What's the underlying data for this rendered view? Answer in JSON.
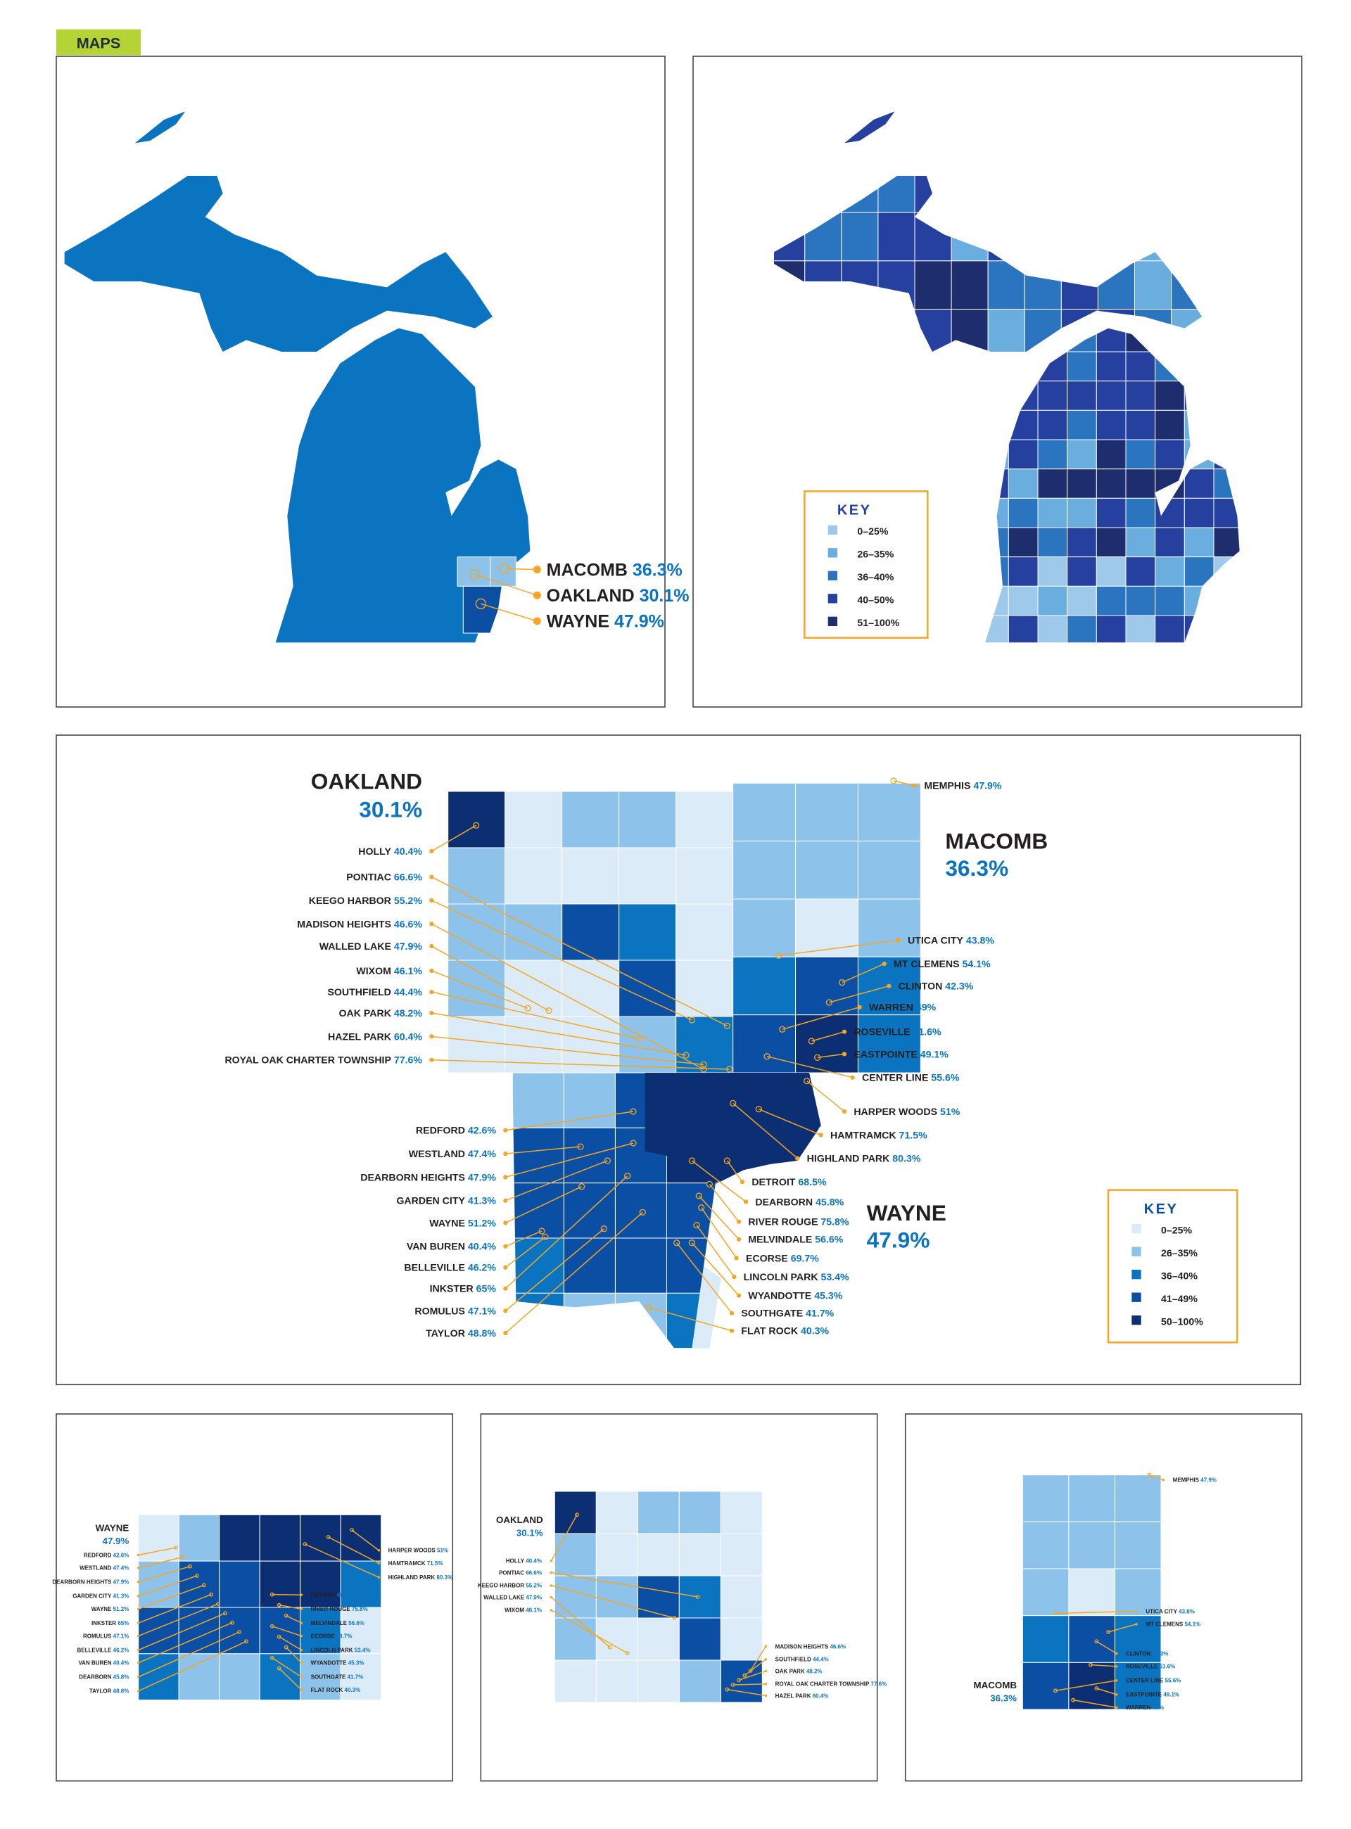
{
  "badge": "MAPS",
  "colors": {
    "badge": "#b5d334",
    "state_fill": "#0a74c0",
    "leader": "#f5a623",
    "key_border": "#f5a623",
    "pct_text": "#0a74c0"
  },
  "overview": {
    "counties": [
      {
        "name": "MACOMB",
        "pct": "36.3%"
      },
      {
        "name": "OAKLAND",
        "pct": "30.1%"
      },
      {
        "name": "WAYNE",
        "pct": "47.9%"
      }
    ]
  },
  "state_key": {
    "title": "KEY",
    "items": [
      {
        "label": "0–25%",
        "color": "#9ec9ea"
      },
      {
        "label": "26–35%",
        "color": "#6aaee0"
      },
      {
        "label": "36–40%",
        "color": "#2a74c0"
      },
      {
        "label": "40–50%",
        "color": "#25409e"
      },
      {
        "label": "51–100%",
        "color": "#1e2d6e"
      }
    ]
  },
  "metro_key": {
    "title": "KEY",
    "items": [
      {
        "label": "0–25%",
        "color": "#dcebf8"
      },
      {
        "label": "26–35%",
        "color": "#8dc3ea"
      },
      {
        "label": "36–40%",
        "color": "#0a74c0"
      },
      {
        "label": "41–49%",
        "color": "#0a4fa3"
      },
      {
        "label": "50–100%",
        "color": "#0c2f73"
      }
    ]
  },
  "oakland": {
    "name": "OAKLAND",
    "pct": "30.1%",
    "cities": [
      {
        "name": "HOLLY",
        "pct": "40.4%"
      },
      {
        "name": "PONTIAC",
        "pct": "66.6%"
      },
      {
        "name": "KEEGO HARBOR",
        "pct": "55.2%"
      },
      {
        "name": "MADISON HEIGHTS",
        "pct": "46.6%"
      },
      {
        "name": "WALLED LAKE",
        "pct": "47.9%"
      },
      {
        "name": "WIXOM",
        "pct": "46.1%"
      },
      {
        "name": "SOUTHFIELD",
        "pct": "44.4%"
      },
      {
        "name": "OAK PARK",
        "pct": "48.2%"
      },
      {
        "name": "HAZEL PARK",
        "pct": "60.4%"
      },
      {
        "name": "ROYAL OAK CHARTER TOWNSHIP",
        "pct": "77.6%"
      }
    ]
  },
  "macomb": {
    "name": "MACOMB",
    "pct": "36.3%",
    "cities": [
      {
        "name": "MEMPHIS",
        "pct": "47.9%"
      },
      {
        "name": "UTICA CITY",
        "pct": "43.8%"
      },
      {
        "name": "MT CLEMENS",
        "pct": "54.1%"
      },
      {
        "name": "CLINTON",
        "pct": "42.3%"
      },
      {
        "name": "WARREN",
        "pct": "49%"
      },
      {
        "name": "ROSEVILLE",
        "pct": "51.6%"
      },
      {
        "name": "EASTPOINTE",
        "pct": "49.1%"
      },
      {
        "name": "CENTER LINE",
        "pct": "55.6%"
      }
    ]
  },
  "wayne": {
    "name": "WAYNE",
    "pct": "47.9%",
    "cities": [
      {
        "name": "REDFORD",
        "pct": "42.6%"
      },
      {
        "name": "WESTLAND",
        "pct": "47.4%"
      },
      {
        "name": "DEARBORN HEIGHTS",
        "pct": "47.9%"
      },
      {
        "name": "GARDEN CITY",
        "pct": "41.3%"
      },
      {
        "name": "WAYNE",
        "pct": "51.2%"
      },
      {
        "name": "VAN BUREN",
        "pct": "40.4%"
      },
      {
        "name": "BELLEVILLE",
        "pct": "46.2%"
      },
      {
        "name": "INKSTER",
        "pct": "65%"
      },
      {
        "name": "ROMULUS",
        "pct": "47.1%"
      },
      {
        "name": "TAYLOR",
        "pct": "48.8%"
      },
      {
        "name": "HARPER WOODS",
        "pct": "51%"
      },
      {
        "name": "HAMTRAMCK",
        "pct": "71.5%"
      },
      {
        "name": "HIGHLAND PARK",
        "pct": "80.3%"
      },
      {
        "name": "DETROIT",
        "pct": "68.5%"
      },
      {
        "name": "DEARBORN",
        "pct": "45.8%"
      },
      {
        "name": "RIVER ROUGE",
        "pct": "75.8%"
      },
      {
        "name": "MELVINDALE",
        "pct": "56.6%"
      },
      {
        "name": "ECORSE",
        "pct": "69.7%"
      },
      {
        "name": "LINCOLN PARK",
        "pct": "53.4%"
      },
      {
        "name": "WYANDOTTE",
        "pct": "45.3%"
      },
      {
        "name": "SOUTHGATE",
        "pct": "41.7%"
      },
      {
        "name": "FLAT ROCK",
        "pct": "40.3%"
      }
    ]
  }
}
